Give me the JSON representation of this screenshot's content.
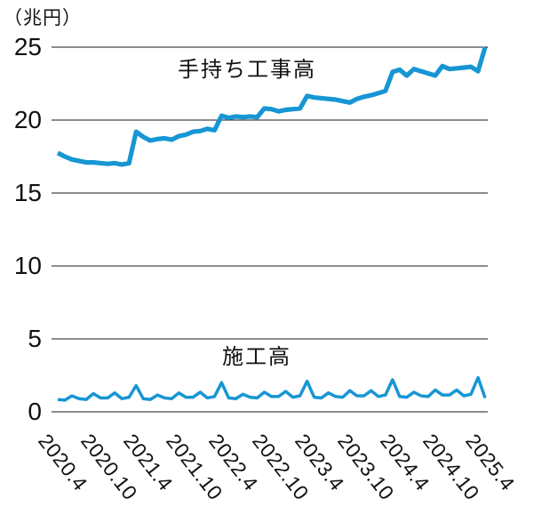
{
  "unit_label": "（兆円）",
  "colors": {
    "line": "#1796d4",
    "grid": "#1a1a1a",
    "text": "#111111"
  },
  "chart_data": {
    "type": "line",
    "title": "",
    "ylabel": "（兆円）",
    "ylim": [
      0,
      25
    ],
    "grid": "horizontal",
    "legend_position": "inline-annotations",
    "yticks": [
      0,
      5,
      10,
      15,
      20,
      25
    ],
    "ytick_labels": [
      "25",
      "20",
      "15",
      "10",
      "5",
      "0"
    ],
    "xticks": [
      "2020.4",
      "2020.10",
      "2021.4",
      "2021.10",
      "2022.4",
      "2022.10",
      "2023.4",
      "2023.10",
      "2024.4",
      "2024.10",
      "2025.4"
    ],
    "x": [
      "2020.4",
      "2020.5",
      "2020.6",
      "2020.7",
      "2020.8",
      "2020.9",
      "2020.10",
      "2020.11",
      "2020.12",
      "2021.1",
      "2021.2",
      "2021.3",
      "2021.4",
      "2021.5",
      "2021.6",
      "2021.7",
      "2021.8",
      "2021.9",
      "2021.10",
      "2021.11",
      "2021.12",
      "2022.1",
      "2022.2",
      "2022.3",
      "2022.4",
      "2022.5",
      "2022.6",
      "2022.7",
      "2022.8",
      "2022.9",
      "2022.10",
      "2022.11",
      "2022.12",
      "2023.1",
      "2023.2",
      "2023.3",
      "2023.4",
      "2023.5",
      "2023.6",
      "2023.7",
      "2023.8",
      "2023.9",
      "2023.10",
      "2023.11",
      "2023.12",
      "2024.1",
      "2024.2",
      "2024.3",
      "2024.4",
      "2024.5",
      "2024.6",
      "2024.7",
      "2024.8",
      "2024.9",
      "2024.10",
      "2024.11",
      "2024.12",
      "2025.1",
      "2025.2",
      "2025.3",
      "2025.4"
    ],
    "series": [
      {
        "name": "手持ち工事高",
        "values": [
          17.75,
          17.5,
          17.3,
          17.2,
          17.1,
          17.1,
          17.05,
          17.0,
          17.05,
          16.95,
          17.05,
          19.2,
          18.85,
          18.6,
          18.7,
          18.75,
          18.65,
          18.9,
          19.0,
          19.2,
          19.25,
          19.4,
          19.3,
          20.3,
          20.15,
          20.25,
          20.2,
          20.25,
          20.2,
          20.8,
          20.75,
          20.6,
          20.7,
          20.75,
          20.8,
          21.65,
          21.55,
          21.5,
          21.45,
          21.4,
          21.3,
          21.2,
          21.45,
          21.6,
          21.7,
          21.85,
          22.0,
          23.3,
          23.45,
          23.05,
          23.5,
          23.35,
          23.2,
          23.05,
          23.7,
          23.5,
          23.55,
          23.6,
          23.65,
          23.35,
          25.0
        ]
      },
      {
        "name": "施工高",
        "values": [
          0.85,
          0.8,
          1.1,
          0.9,
          0.85,
          1.25,
          0.95,
          0.95,
          1.3,
          0.9,
          1.0,
          1.8,
          0.9,
          0.85,
          1.15,
          0.95,
          0.9,
          1.3,
          1.0,
          1.0,
          1.35,
          0.95,
          1.05,
          2.0,
          0.95,
          0.9,
          1.2,
          1.0,
          0.95,
          1.35,
          1.05,
          1.05,
          1.4,
          1.0,
          1.1,
          2.1,
          1.0,
          0.95,
          1.3,
          1.05,
          1.0,
          1.45,
          1.1,
          1.1,
          1.45,
          1.05,
          1.15,
          2.2,
          1.05,
          1.0,
          1.35,
          1.1,
          1.05,
          1.5,
          1.15,
          1.15,
          1.5,
          1.1,
          1.2,
          2.35,
          0.95
        ]
      }
    ]
  }
}
